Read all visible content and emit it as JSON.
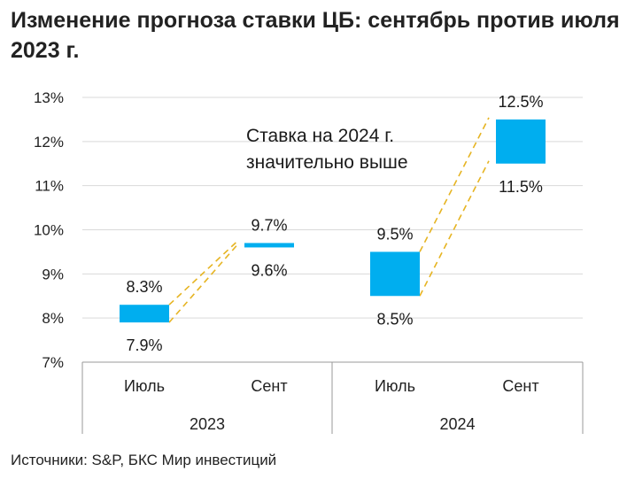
{
  "header": {
    "title": "Изменение прогноза ставки ЦБ: сентябрь против июля 2023 г."
  },
  "footer": {
    "source": "Источники: S&P, БКС Мир инвестиций"
  },
  "colors": {
    "bar": "#00aeef",
    "connector": "#e6b422",
    "grid": "#d9d9d9",
    "axis": "#999999"
  },
  "chart_data": {
    "type": "bar",
    "subtype": "floating-range",
    "title": "Изменение прогноза ставки ЦБ: сентябрь против июля 2023 г.",
    "y_ticks": [
      "7%",
      "8%",
      "9%",
      "10%",
      "11%",
      "12%",
      "13%"
    ],
    "ylim": [
      7,
      13
    ],
    "grid": true,
    "groups": [
      {
        "label": "2023",
        "categories": [
          "Июль",
          "Сент"
        ]
      },
      {
        "label": "2024",
        "categories": [
          "Июль",
          "Сент"
        ]
      }
    ],
    "ranges": [
      {
        "group": "2023",
        "category": "Июль",
        "low": 7.9,
        "high": 8.3,
        "low_label": "7.9%",
        "high_label": "8.3%"
      },
      {
        "group": "2023",
        "category": "Сент",
        "low": 9.6,
        "high": 9.7,
        "low_label": "9.6%",
        "high_label": "9.7%"
      },
      {
        "group": "2024",
        "category": "Июль",
        "low": 8.5,
        "high": 9.5,
        "low_label": "8.5%",
        "high_label": "9.5%"
      },
      {
        "group": "2024",
        "category": "Сент",
        "low": 11.5,
        "high": 12.5,
        "low_label": "11.5%",
        "high_label": "12.5%"
      }
    ],
    "annotation": [
      "Ставка на 2024 г.",
      "значительно выше"
    ]
  }
}
